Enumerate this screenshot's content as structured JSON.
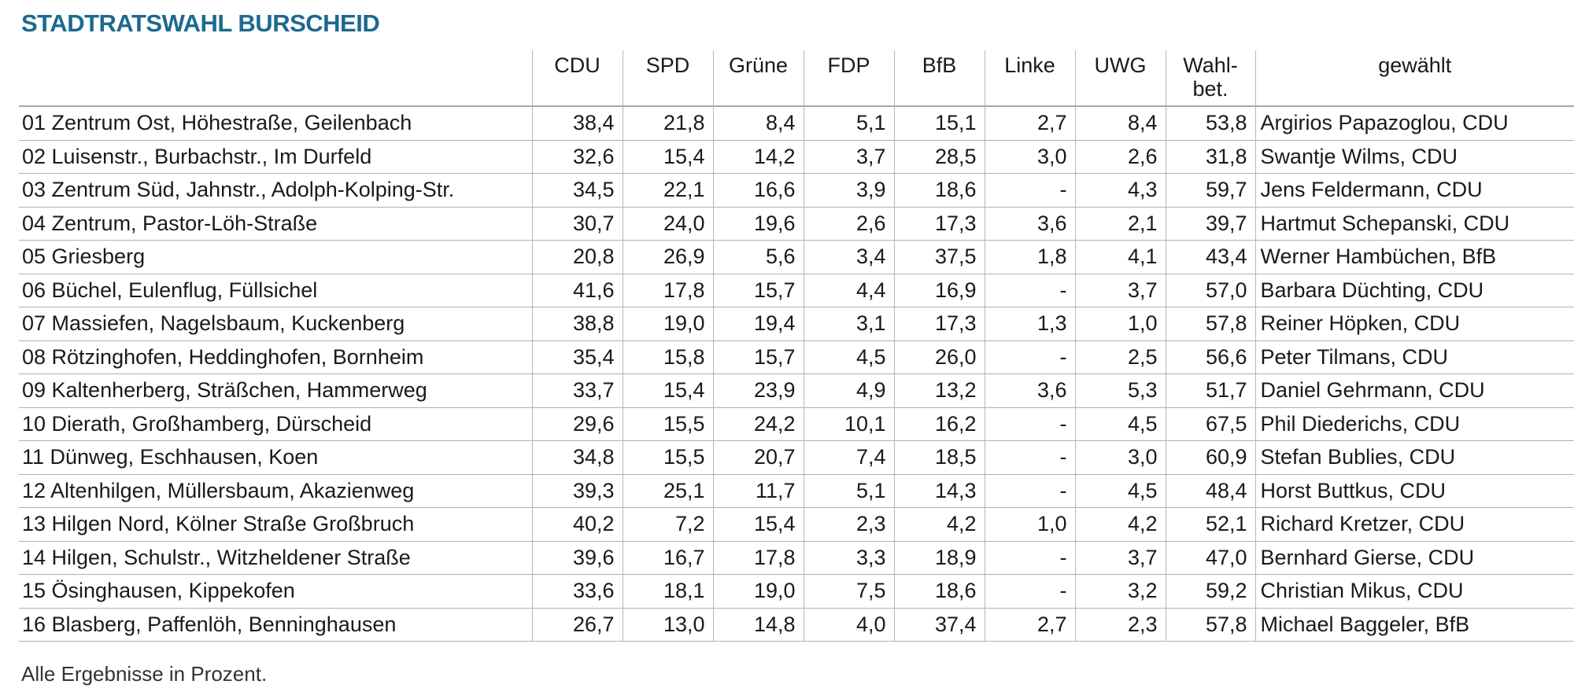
{
  "title": "STADTRATSWAHL BURSCHEID",
  "headers": [
    "",
    "CDU",
    "SPD",
    "Grüne",
    "FDP",
    "BfB",
    "Linke",
    "UWG",
    "Wahl-\nbet.",
    "gewählt"
  ],
  "rows": [
    [
      "01 Zentrum Ost, Höhestraße, Geilenbach",
      "38,4",
      "21,8",
      "8,4",
      "5,1",
      "15,1",
      "2,7",
      "8,4",
      "53,8",
      "Argirios Papazoglou, CDU"
    ],
    [
      "02 Luisenstr., Burbachstr., Im Durfeld",
      "32,6",
      "15,4",
      "14,2",
      "3,7",
      "28,5",
      "3,0",
      "2,6",
      "31,8",
      "Swantje Wilms, CDU"
    ],
    [
      "03 Zentrum Süd, Jahnstr., Adolph-Kolping-Str.",
      "34,5",
      "22,1",
      "16,6",
      "3,9",
      "18,6",
      "-",
      "4,3",
      "59,7",
      "Jens Feldermann, CDU"
    ],
    [
      "04 Zentrum, Pastor-Löh-Straße",
      "30,7",
      "24,0",
      "19,6",
      "2,6",
      "17,3",
      "3,6",
      "2,1",
      "39,7",
      "Hartmut Schepanski, CDU"
    ],
    [
      "05 Griesberg",
      "20,8",
      "26,9",
      "5,6",
      "3,4",
      "37,5",
      "1,8",
      "4,1",
      "43,4",
      "Werner Hambüchen, BfB"
    ],
    [
      "06 Büchel, Eulenflug, Füllsichel",
      "41,6",
      "17,8",
      "15,7",
      "4,4",
      "16,9",
      "-",
      "3,7",
      "57,0",
      "Barbara Düchting, CDU"
    ],
    [
      "07 Massiefen, Nagelsbaum, Kuckenberg",
      "38,8",
      "19,0",
      "19,4",
      "3,1",
      "17,3",
      "1,3",
      "1,0",
      "57,8",
      "Reiner Höpken, CDU"
    ],
    [
      "08 Rötzinghofen, Heddinghofen, Bornheim",
      "35,4",
      "15,8",
      "15,7",
      "4,5",
      "26,0",
      "-",
      "2,5",
      "56,6",
      "Peter Tilmans, CDU"
    ],
    [
      "09 Kaltenherberg, Sträßchen, Hammerweg",
      "33,7",
      "15,4",
      "23,9",
      "4,9",
      "13,2",
      "3,6",
      "5,3",
      "51,7",
      "Daniel Gehrmann, CDU"
    ],
    [
      "10 Dierath, Großhamberg, Dürscheid",
      "29,6",
      "15,5",
      "24,2",
      "10,1",
      "16,2",
      "-",
      "4,5",
      "67,5",
      "Phil Diederichs, CDU"
    ],
    [
      "11 Dünweg, Eschhausen, Koen",
      "34,8",
      "15,5",
      "20,7",
      "7,4",
      "18,5",
      "-",
      "3,0",
      "60,9",
      "Stefan Bublies, CDU"
    ],
    [
      "12 Altenhilgen, Müllersbaum, Akazienweg",
      "39,3",
      "25,1",
      "11,7",
      "5,1",
      "14,3",
      "-",
      "4,5",
      "48,4",
      "Horst Buttkus, CDU"
    ],
    [
      "13 Hilgen Nord, Kölner Straße Großbruch",
      "40,2",
      "7,2",
      "15,4",
      "2,3",
      "4,2",
      "1,0",
      "4,2",
      "52,1",
      "Richard Kretzer, CDU"
    ],
    [
      "14 Hilgen, Schulstr., Witzheldener Straße",
      "39,6",
      "16,7",
      "17,8",
      "3,3",
      "18,9",
      "-",
      "3,7",
      "47,0",
      "Bernhard Gierse, CDU"
    ],
    [
      "15 Ösinghausen, Kippekofen",
      "33,6",
      "18,1",
      "19,0",
      "7,5",
      "18,6",
      "-",
      "3,2",
      "59,2",
      "Christian Mikus, CDU"
    ],
    [
      "16 Blasberg, Paffenlöh, Benninghausen",
      "26,7",
      "13,0",
      "14,8",
      "4,0",
      "37,4",
      "2,7",
      "2,3",
      "57,8",
      "Michael Baggeler, BfB"
    ]
  ],
  "footnote": "Alle Ergebnisse in Prozent.",
  "colors": {
    "title": "#1c6a8e",
    "text": "#1a1a1a",
    "grid": "#b0b0b0"
  }
}
